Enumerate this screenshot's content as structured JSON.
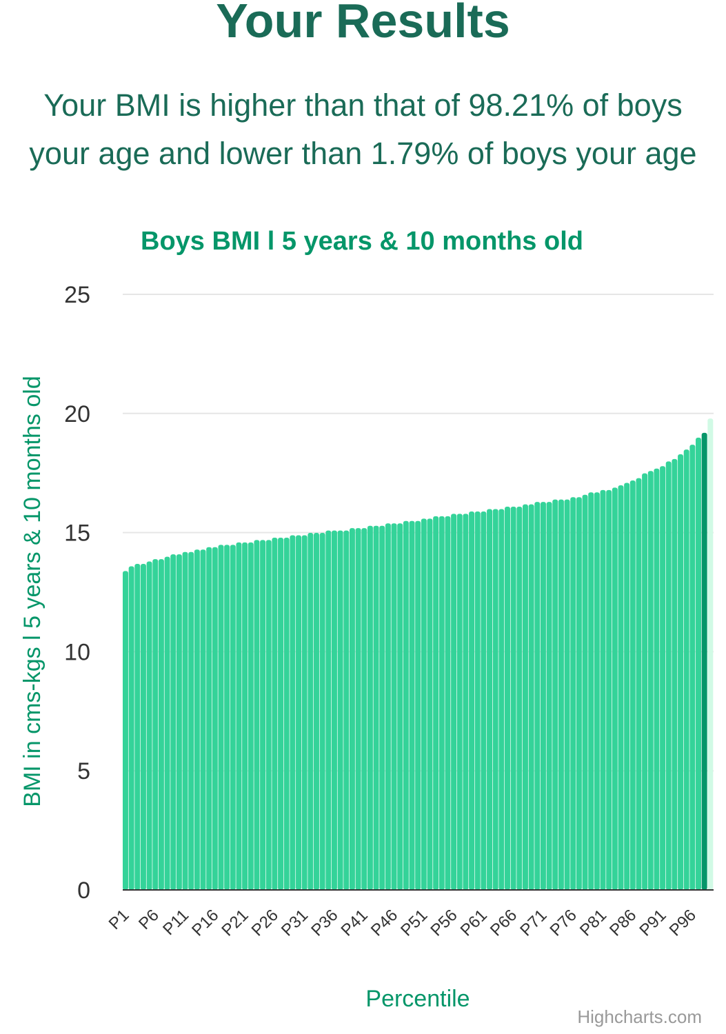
{
  "page": {
    "heading": "Your Results",
    "summary_line1": "Your BMI is higher than that of 98.21% of boys",
    "summary_line2": "your age and lower than 1.79% of boys your age"
  },
  "chart_data": {
    "type": "bar",
    "title": "Boys BMI l 5 years & 10 months old",
    "xlabel": "Percentile",
    "ylabel": "BMI in cms-kgs l 5 years & 10 months old",
    "ylim": [
      0,
      25
    ],
    "yticks": [
      0,
      5,
      10,
      15,
      20,
      25
    ],
    "xtick_labels": [
      "P1",
      "P6",
      "P11",
      "P16",
      "P21",
      "P26",
      "P31",
      "P36",
      "P41",
      "P46",
      "P51",
      "P56",
      "P61",
      "P66",
      "P71",
      "P76",
      "P81",
      "P86",
      "P91",
      "P96"
    ],
    "grid": true,
    "credits": "Highcharts.com",
    "highlighted_percentile": "P98",
    "colors": {
      "bar": "#34d399",
      "highlight": "#059669",
      "above": "#d1fae5",
      "title": "#059669",
      "heading": "#1a6b57",
      "grid": "#e6e6e6",
      "axis_text": "#333333"
    },
    "categories": [
      "P1",
      "P2",
      "P3",
      "P4",
      "P5",
      "P6",
      "P7",
      "P8",
      "P9",
      "P10",
      "P11",
      "P12",
      "P13",
      "P14",
      "P15",
      "P16",
      "P17",
      "P18",
      "P19",
      "P20",
      "P21",
      "P22",
      "P23",
      "P24",
      "P25",
      "P26",
      "P27",
      "P28",
      "P29",
      "P30",
      "P31",
      "P32",
      "P33",
      "P34",
      "P35",
      "P36",
      "P37",
      "P38",
      "P39",
      "P40",
      "P41",
      "P42",
      "P43",
      "P44",
      "P45",
      "P46",
      "P47",
      "P48",
      "P49",
      "P50",
      "P51",
      "P52",
      "P53",
      "P54",
      "P55",
      "P56",
      "P57",
      "P58",
      "P59",
      "P60",
      "P61",
      "P62",
      "P63",
      "P64",
      "P65",
      "P66",
      "P67",
      "P68",
      "P69",
      "P70",
      "P71",
      "P72",
      "P73",
      "P74",
      "P75",
      "P76",
      "P77",
      "P78",
      "P79",
      "P80",
      "P81",
      "P82",
      "P83",
      "P84",
      "P85",
      "P86",
      "P87",
      "P88",
      "P89",
      "P90",
      "P91",
      "P92",
      "P93",
      "P94",
      "P95",
      "P96",
      "P97",
      "P98",
      "P99"
    ],
    "values": [
      13.3,
      13.5,
      13.6,
      13.6,
      13.7,
      13.8,
      13.8,
      13.9,
      14.0,
      14.0,
      14.1,
      14.1,
      14.2,
      14.2,
      14.3,
      14.3,
      14.4,
      14.4,
      14.4,
      14.5,
      14.5,
      14.5,
      14.6,
      14.6,
      14.6,
      14.7,
      14.7,
      14.7,
      14.8,
      14.8,
      14.8,
      14.9,
      14.9,
      14.9,
      15.0,
      15.0,
      15.0,
      15.0,
      15.1,
      15.1,
      15.1,
      15.2,
      15.2,
      15.2,
      15.3,
      15.3,
      15.3,
      15.4,
      15.4,
      15.4,
      15.5,
      15.5,
      15.6,
      15.6,
      15.6,
      15.7,
      15.7,
      15.7,
      15.8,
      15.8,
      15.8,
      15.9,
      15.9,
      15.9,
      16.0,
      16.0,
      16.0,
      16.1,
      16.1,
      16.2,
      16.2,
      16.2,
      16.3,
      16.3,
      16.3,
      16.4,
      16.4,
      16.5,
      16.6,
      16.6,
      16.7,
      16.7,
      16.8,
      16.9,
      17.0,
      17.1,
      17.2,
      17.4,
      17.5,
      17.6,
      17.7,
      17.9,
      18.0,
      18.2,
      18.4,
      18.6,
      18.9,
      19.1,
      19.7
    ]
  }
}
